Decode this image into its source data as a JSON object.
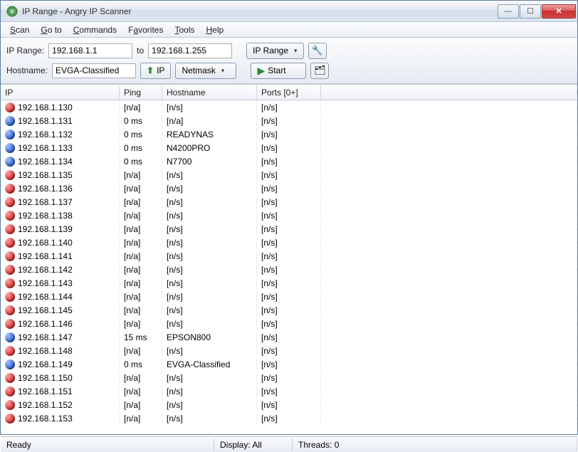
{
  "window": {
    "title": "IP Range - Angry IP Scanner"
  },
  "menu": {
    "items": [
      "Scan",
      "Go to",
      "Commands",
      "Favorites",
      "Tools",
      "Help"
    ]
  },
  "toolbar": {
    "ip_range_label": "IP Range:",
    "ip_from": "192.168.1.1",
    "to_label": "to",
    "ip_to": "192.168.1.255",
    "range_type": "IP Range",
    "hostname_label": "Hostname:",
    "hostname": "EVGA-Classified",
    "ip_btn": "IP",
    "netmask": "Netmask",
    "start": "Start"
  },
  "columns": {
    "ip": "IP",
    "ping": "Ping",
    "hostname": "Hostname",
    "ports": "Ports [0+]"
  },
  "rows": [
    {
      "status": "red",
      "ip": "192.168.1.130",
      "ping": "[n/a]",
      "host": "[n/s]",
      "ports": "[n/s]"
    },
    {
      "status": "blue",
      "ip": "192.168.1.131",
      "ping": "0 ms",
      "host": "[n/a]",
      "ports": "[n/s]"
    },
    {
      "status": "blue",
      "ip": "192.168.1.132",
      "ping": "0 ms",
      "host": "READYNAS",
      "ports": "[n/s]"
    },
    {
      "status": "blue",
      "ip": "192.168.1.133",
      "ping": "0 ms",
      "host": "N4200PRO",
      "ports": "[n/s]"
    },
    {
      "status": "blue",
      "ip": "192.168.1.134",
      "ping": "0 ms",
      "host": "N7700",
      "ports": "[n/s]"
    },
    {
      "status": "red",
      "ip": "192.168.1.135",
      "ping": "[n/a]",
      "host": "[n/s]",
      "ports": "[n/s]"
    },
    {
      "status": "red",
      "ip": "192.168.1.136",
      "ping": "[n/a]",
      "host": "[n/s]",
      "ports": "[n/s]"
    },
    {
      "status": "red",
      "ip": "192.168.1.137",
      "ping": "[n/a]",
      "host": "[n/s]",
      "ports": "[n/s]"
    },
    {
      "status": "red",
      "ip": "192.168.1.138",
      "ping": "[n/a]",
      "host": "[n/s]",
      "ports": "[n/s]"
    },
    {
      "status": "red",
      "ip": "192.168.1.139",
      "ping": "[n/a]",
      "host": "[n/s]",
      "ports": "[n/s]"
    },
    {
      "status": "red",
      "ip": "192.168.1.140",
      "ping": "[n/a]",
      "host": "[n/s]",
      "ports": "[n/s]"
    },
    {
      "status": "red",
      "ip": "192.168.1.141",
      "ping": "[n/a]",
      "host": "[n/s]",
      "ports": "[n/s]"
    },
    {
      "status": "red",
      "ip": "192.168.1.142",
      "ping": "[n/a]",
      "host": "[n/s]",
      "ports": "[n/s]"
    },
    {
      "status": "red",
      "ip": "192.168.1.143",
      "ping": "[n/a]",
      "host": "[n/s]",
      "ports": "[n/s]"
    },
    {
      "status": "red",
      "ip": "192.168.1.144",
      "ping": "[n/a]",
      "host": "[n/s]",
      "ports": "[n/s]"
    },
    {
      "status": "red",
      "ip": "192.168.1.145",
      "ping": "[n/a]",
      "host": "[n/s]",
      "ports": "[n/s]"
    },
    {
      "status": "red",
      "ip": "192.168.1.146",
      "ping": "[n/a]",
      "host": "[n/s]",
      "ports": "[n/s]"
    },
    {
      "status": "blue",
      "ip": "192.168.1.147",
      "ping": "15 ms",
      "host": "EPSON800",
      "ports": "[n/s]"
    },
    {
      "status": "red",
      "ip": "192.168.1.148",
      "ping": "[n/a]",
      "host": "[n/s]",
      "ports": "[n/s]"
    },
    {
      "status": "blue",
      "ip": "192.168.1.149",
      "ping": "0 ms",
      "host": "EVGA-Classified",
      "ports": "[n/s]"
    },
    {
      "status": "red",
      "ip": "192.168.1.150",
      "ping": "[n/a]",
      "host": "[n/s]",
      "ports": "[n/s]"
    },
    {
      "status": "red",
      "ip": "192.168.1.151",
      "ping": "[n/a]",
      "host": "[n/s]",
      "ports": "[n/s]"
    },
    {
      "status": "red",
      "ip": "192.168.1.152",
      "ping": "[n/a]",
      "host": "[n/s]",
      "ports": "[n/s]"
    },
    {
      "status": "red",
      "ip": "192.168.1.153",
      "ping": "[n/a]",
      "host": "[n/s]",
      "ports": "[n/s]"
    }
  ],
  "statusbar": {
    "ready": "Ready",
    "display": "Display: All",
    "threads": "Threads: 0"
  }
}
